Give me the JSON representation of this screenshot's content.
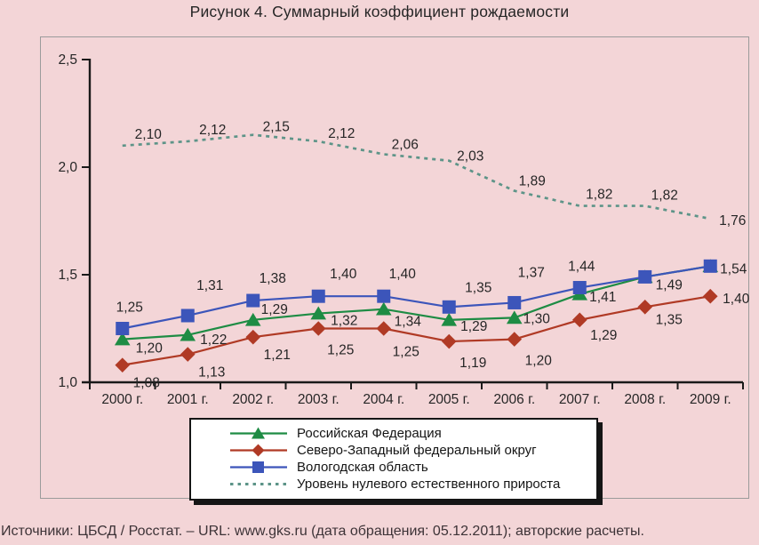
{
  "title": "Рисунок 4. Суммарный коэффициент рождаемости",
  "source": "Источники: ЦБСД / Росстат. – URL: www.gks.ru (дата обращения: 05.12.2011); авторские расчеты.",
  "colors": {
    "page_bg": "#f3d5d7",
    "text": "#262626",
    "axis": "#1a1a1a",
    "frame_border": "#9b9b9b",
    "legend_bg": "#ffffff",
    "legend_border": "#151515",
    "rf_green": "#1e8c44",
    "nw_red": "#b03a25",
    "vologda_blue": "#3c55ba",
    "zpg_teal": "#5d9488"
  },
  "chart_data": {
    "type": "line",
    "title": "Рисунок 4. Суммарный коэффициент рождаемости",
    "xlabel": "",
    "ylabel": "",
    "categories": [
      "2000 г.",
      "2001 г.",
      "2002 г.",
      "2003 г.",
      "2004 г.",
      "2005 г.",
      "2006 г.",
      "2007 г.",
      "2008 г.",
      "2009 г."
    ],
    "ylim": [
      1.0,
      2.5
    ],
    "yticks": [
      {
        "label": "1,0",
        "v": 1.0
      },
      {
        "label": "1,5",
        "v": 1.5
      },
      {
        "label": "2,0",
        "v": 2.0
      },
      {
        "label": "2,5",
        "v": 2.5
      }
    ],
    "grid": false,
    "legend_position": "bottom-center",
    "series": [
      {
        "name": "Российская Федерация",
        "marker": "triangle",
        "dashed": false,
        "color": "#1e8c44",
        "values": [
          1.2,
          1.22,
          1.29,
          1.32,
          1.34,
          1.29,
          1.3,
          1.41,
          1.49,
          1.54
        ],
        "labels": [
          "1,20",
          "1,22",
          "1,29",
          "1,32",
          "1,34",
          "1,29",
          "1,30",
          "1,41",
          null,
          null
        ],
        "label_offsets": [
          [
            30,
            10
          ],
          [
            29,
            5
          ],
          [
            24,
            -12
          ],
          [
            29,
            8
          ],
          [
            27,
            14
          ],
          [
            28,
            7
          ],
          [
            25,
            1
          ],
          [
            26,
            3
          ],
          null,
          null
        ]
      },
      {
        "name": "Северо-Западный федеральный округ",
        "marker": "diamond",
        "dashed": false,
        "color": "#b03a25",
        "values": [
          1.08,
          1.13,
          1.21,
          1.25,
          1.25,
          1.19,
          1.2,
          1.29,
          1.35,
          1.4
        ],
        "labels": [
          "1,08",
          "1,13",
          "1,21",
          "1,25",
          "1,25",
          "1,19",
          "1,20",
          "1,29",
          "1,35",
          "1,40"
        ],
        "label_offsets": [
          [
            27,
            20
          ],
          [
            27,
            20
          ],
          [
            27,
            20
          ],
          [
            25,
            24
          ],
          [
            25,
            26
          ],
          [
            27,
            24
          ],
          [
            27,
            24
          ],
          [
            27,
            17
          ],
          [
            27,
            14
          ],
          [
            29,
            3
          ]
        ]
      },
      {
        "name": "Вологодская область",
        "marker": "square",
        "dashed": false,
        "color": "#3c55ba",
        "values": [
          1.25,
          1.31,
          1.38,
          1.4,
          1.4,
          1.35,
          1.37,
          1.44,
          1.49,
          1.54
        ],
        "labels": [
          "1,25",
          "1,31",
          "1,38",
          "1,40",
          "1,40",
          "1,35",
          "1,37",
          "1,44",
          "1,49",
          "1,54"
        ],
        "label_offsets": [
          [
            8,
            -24
          ],
          [
            25,
            -34
          ],
          [
            22,
            -25
          ],
          [
            28,
            -25
          ],
          [
            21,
            -25
          ],
          [
            33,
            -22
          ],
          [
            19,
            -34
          ],
          [
            2,
            -24
          ],
          [
            27,
            9
          ],
          [
            26,
            3
          ]
        ]
      },
      {
        "name": "Уровень нулевого естественного прироста",
        "marker": "none",
        "dashed": true,
        "color": "#5d9488",
        "values": [
          2.1,
          2.12,
          2.15,
          2.12,
          2.06,
          2.03,
          1.89,
          1.82,
          1.82,
          1.76
        ],
        "labels": [
          "2,10",
          "2,12",
          "2,15",
          "2,12",
          "2,06",
          "2,03",
          "1,89",
          "1,82",
          "1,82",
          "1,76"
        ],
        "label_offsets": [
          [
            29,
            -13
          ],
          [
            28,
            -13
          ],
          [
            26,
            -9
          ],
          [
            26,
            -9
          ],
          [
            24,
            -11
          ],
          [
            24,
            -5
          ],
          [
            20,
            -11
          ],
          [
            22,
            -13
          ],
          [
            22,
            -12
          ],
          [
            25,
            2
          ]
        ]
      }
    ]
  }
}
